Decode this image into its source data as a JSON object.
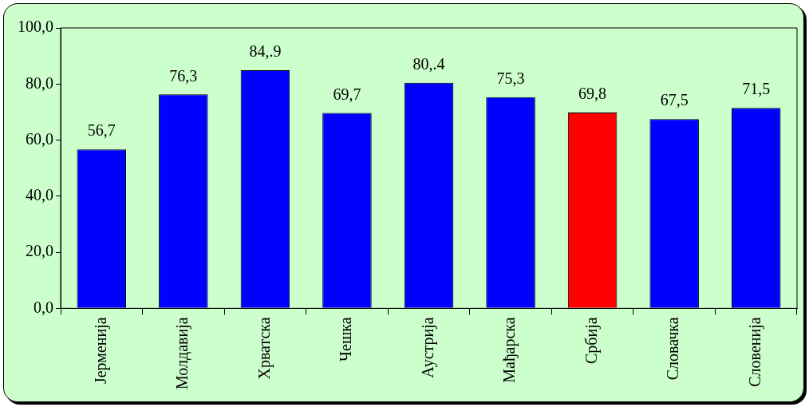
{
  "chart_data": {
    "type": "bar",
    "categories": [
      "Јерменија",
      "Молдавија",
      "Хрватска",
      "Чешка",
      "Аустрија",
      "Мађарска",
      "Србија",
      "Словачка",
      "Словенија"
    ],
    "values": [
      56.7,
      76.3,
      84.9,
      69.7,
      80.4,
      75.3,
      69.8,
      67.5,
      71.5
    ],
    "colors": [
      "#0000ff",
      "#0000ff",
      "#0000ff",
      "#0000ff",
      "#0000ff",
      "#0000ff",
      "#ff0000",
      "#0000ff",
      "#0000ff"
    ],
    "value_labels": [
      "56,7",
      "76,3",
      "84,.9",
      "69,7",
      "80,.4",
      "75,3",
      "69,8",
      "67,5",
      "71,5"
    ],
    "ylim": [
      0,
      100
    ],
    "yticks": [
      {
        "value": 0,
        "label": "0,0"
      },
      {
        "value": 20,
        "label": "20,0"
      },
      {
        "value": 40,
        "label": "40,0"
      },
      {
        "value": 60,
        "label": "60,0"
      },
      {
        "value": 80,
        "label": "80,0"
      },
      {
        "value": 100,
        "label": "100,0"
      }
    ],
    "grid": false,
    "legend": false
  }
}
